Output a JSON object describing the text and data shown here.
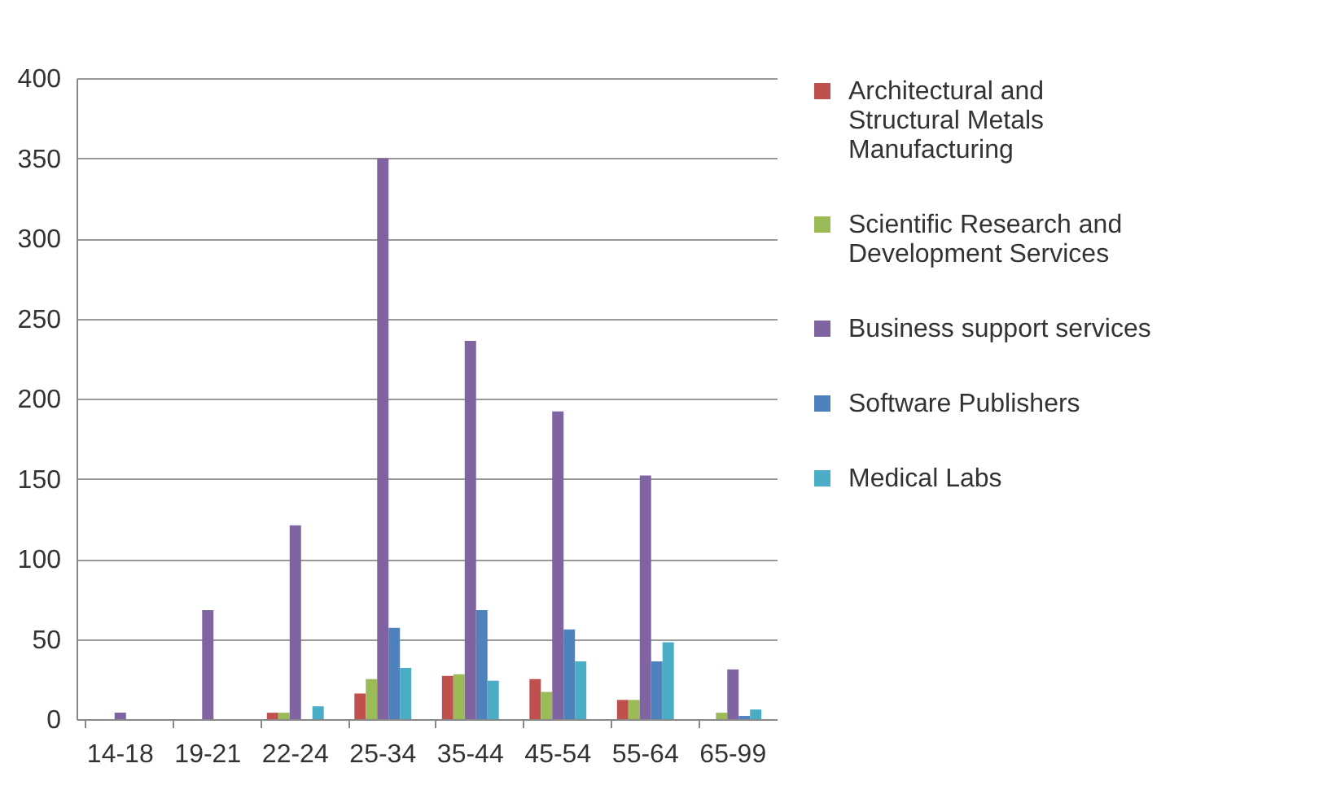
{
  "chart_data": {
    "type": "bar",
    "categories": [
      "14-18",
      "19-21",
      "22-24",
      "25-34",
      "35-44",
      "45-54",
      "55-64",
      "65-99"
    ],
    "series": [
      {
        "name": "Architectural and Structural Metals Manufacturing",
        "color": "#c0504d",
        "values": [
          0,
          0,
          4,
          16,
          27,
          25,
          12,
          0
        ]
      },
      {
        "name": "Scientific Research and Development Services",
        "color": "#9bbb59",
        "values": [
          0,
          0,
          4,
          25,
          28,
          17,
          12,
          4
        ]
      },
      {
        "name": "Business support services",
        "color": "#8064a2",
        "values": [
          4,
          68,
          121,
          350,
          236,
          192,
          152,
          31
        ]
      },
      {
        "name": "Software Publishers",
        "color": "#4f81bd",
        "values": [
          0,
          0,
          0,
          57,
          68,
          56,
          36,
          2
        ]
      },
      {
        "name": "Medical Labs",
        "color": "#4bacc6",
        "values": [
          0,
          0,
          8,
          32,
          24,
          36,
          48,
          6
        ]
      }
    ],
    "ylim": [
      0,
      400
    ],
    "yticks": [
      0,
      50,
      100,
      150,
      200,
      250,
      300,
      350,
      400
    ],
    "grid": "y",
    "legend": "right"
  }
}
